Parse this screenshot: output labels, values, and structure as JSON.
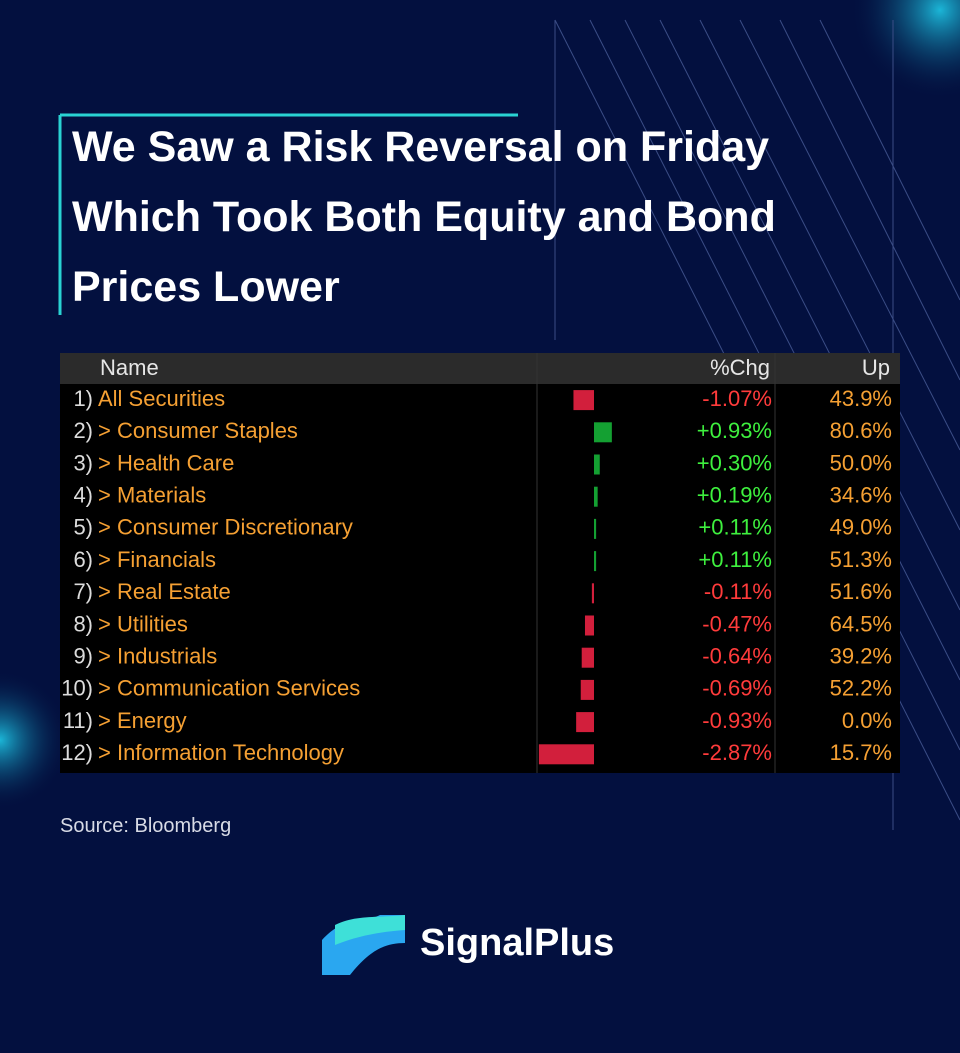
{
  "title": "We Saw a Risk Reversal on Friday Which Took Both Equity and Bond Prices Lower",
  "table": {
    "headers": [
      "Name",
      "%Chg",
      "Up"
    ],
    "rows": [
      {
        "index": "1)",
        "name": "All Securities",
        "chg": -1.07,
        "chg_label": "-1.07%",
        "up": "43.9%"
      },
      {
        "index": "2)",
        "name": "> Consumer Staples",
        "chg": 0.93,
        "chg_label": "+0.93%",
        "up": "80.6%"
      },
      {
        "index": "3)",
        "name": "> Health Care",
        "chg": 0.3,
        "chg_label": "+0.30%",
        "up": "50.0%"
      },
      {
        "index": "4)",
        "name": "> Materials",
        "chg": 0.19,
        "chg_label": "+0.19%",
        "up": "34.6%"
      },
      {
        "index": "5)",
        "name": "> Consumer Discretionary",
        "chg": 0.11,
        "chg_label": "+0.11%",
        "up": "49.0%"
      },
      {
        "index": "6)",
        "name": "> Financials",
        "chg": 0.11,
        "chg_label": "+0.11%",
        "up": "51.3%"
      },
      {
        "index": "7)",
        "name": "> Real Estate",
        "chg": -0.11,
        "chg_label": "-0.11%",
        "up": "51.6%"
      },
      {
        "index": "8)",
        "name": "> Utilities",
        "chg": -0.47,
        "chg_label": "-0.47%",
        "up": "64.5%"
      },
      {
        "index": "9)",
        "name": "> Industrials",
        "chg": -0.64,
        "chg_label": "-0.64%",
        "up": "39.2%"
      },
      {
        "index": "10)",
        "name": "> Communication Services",
        "chg": -0.69,
        "chg_label": "-0.69%",
        "up": "52.2%"
      },
      {
        "index": "11)",
        "name": "> Energy",
        "chg": -0.93,
        "chg_label": "-0.93%",
        "up": "0.0%"
      },
      {
        "index": "12)",
        "name": "> Information Technology",
        "chg": -2.87,
        "chg_label": "-2.87%",
        "up": "15.7%"
      }
    ]
  },
  "source": "Source: Bloomberg",
  "brand": "SignalPlus"
}
